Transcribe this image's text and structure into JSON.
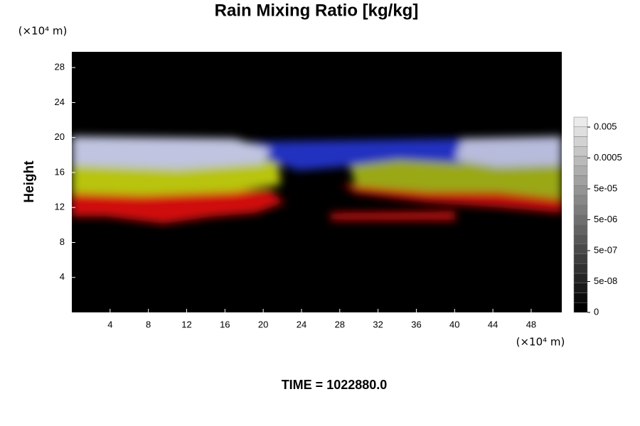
{
  "chart_data": {
    "type": "heatmap",
    "title": "Rain Mixing Ratio [kg/kg]",
    "ylabel": "Height",
    "x_unit": "(×10⁴ m)",
    "y_unit": "(×10⁴ m)",
    "xlim": [
      0,
      51.2
    ],
    "xticks": [
      4,
      8,
      12,
      16,
      20,
      24,
      28,
      32,
      36,
      40,
      44,
      48
    ],
    "ylim": [
      0,
      29.8
    ],
    "yticks": [
      4,
      8,
      12,
      16,
      20,
      24,
      28
    ],
    "colorbar": {
      "ticks": [
        0,
        {
          "value": 5e-08,
          "label": "5e-08"
        },
        {
          "value": 5e-07,
          "label": "5e-07"
        },
        {
          "value": 5e-06,
          "label": "5e-06"
        },
        {
          "value": 5e-05,
          "label": "5e-05"
        },
        0.0005,
        0.005
      ]
    },
    "footer": "TIME = 1022880.0"
  }
}
